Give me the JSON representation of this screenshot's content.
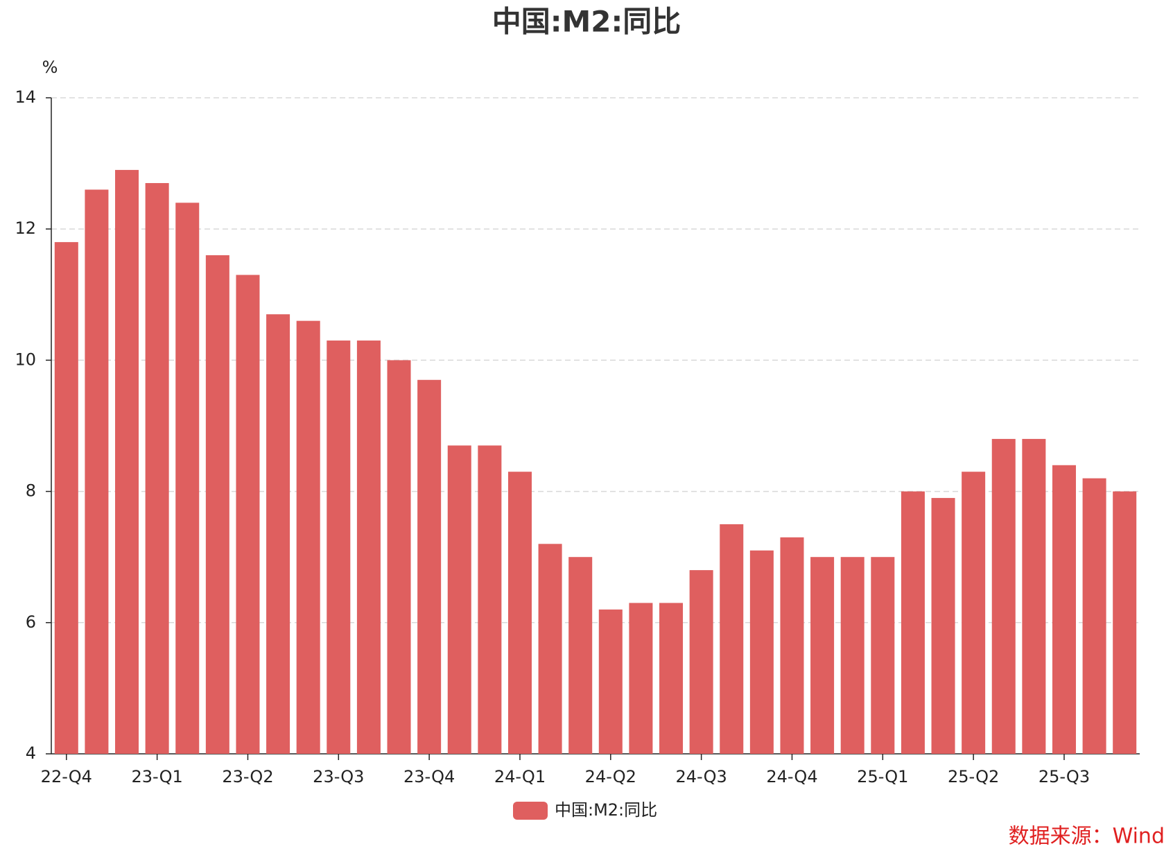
{
  "chart_data": {
    "type": "bar",
    "title": "中国:M2:同比",
    "y_unit": "%",
    "categories": [
      "22-Q4",
      null,
      null,
      "23-Q1",
      null,
      null,
      "23-Q2",
      null,
      null,
      "23-Q3",
      null,
      null,
      "23-Q4",
      null,
      null,
      "24-Q1",
      null,
      null,
      "24-Q2",
      null,
      null,
      "24-Q3",
      null,
      null,
      "24-Q4",
      null,
      null,
      "25-Q1",
      null,
      null,
      "25-Q2",
      null,
      null,
      "25-Q3",
      null,
      null
    ],
    "series": [
      {
        "name": "中国:M2:同比",
        "color": "#df5f5f",
        "values": [
          11.8,
          12.6,
          12.9,
          12.7,
          12.4,
          11.6,
          11.3,
          10.7,
          10.6,
          10.3,
          10.3,
          10.0,
          9.7,
          8.7,
          8.7,
          8.3,
          7.2,
          7.0,
          6.2,
          6.3,
          6.3,
          6.8,
          7.5,
          7.1,
          7.3,
          7.0,
          7.0,
          7.0,
          8.0,
          7.9,
          8.3,
          8.8,
          8.8,
          8.4,
          8.2,
          8.0
        ]
      }
    ],
    "ylim": [
      4,
      14
    ],
    "yticks": [
      4,
      6,
      8,
      10,
      12,
      14
    ],
    "grid": true,
    "source": "数据来源：Wind"
  }
}
